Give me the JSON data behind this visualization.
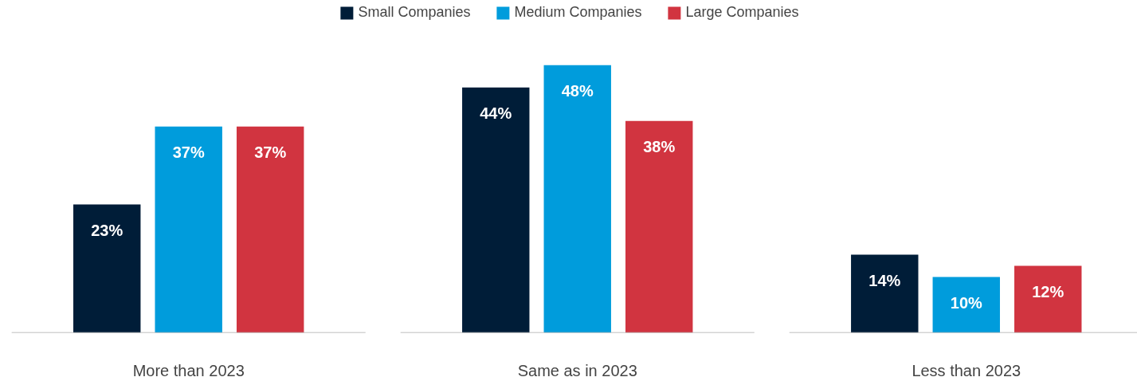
{
  "chart_data": {
    "type": "bar",
    "categories": [
      "More than 2023",
      "Same as in 2023",
      "Less than 2023"
    ],
    "legend": "top",
    "series": [
      {
        "name": "Small Companies",
        "color": "#001d38",
        "values": [
          23,
          44,
          14
        ],
        "value_labels": [
          "23%",
          "44%",
          "14%"
        ]
      },
      {
        "name": "Medium Companies",
        "color": "#009cdc",
        "values": [
          37,
          48,
          10
        ],
        "value_labels": [
          "37%",
          "48%",
          "10%"
        ]
      },
      {
        "name": "Large Companies",
        "color": "#d13440",
        "values": [
          37,
          38,
          12
        ],
        "value_labels": [
          "37%",
          "38%",
          "12%"
        ]
      }
    ]
  }
}
